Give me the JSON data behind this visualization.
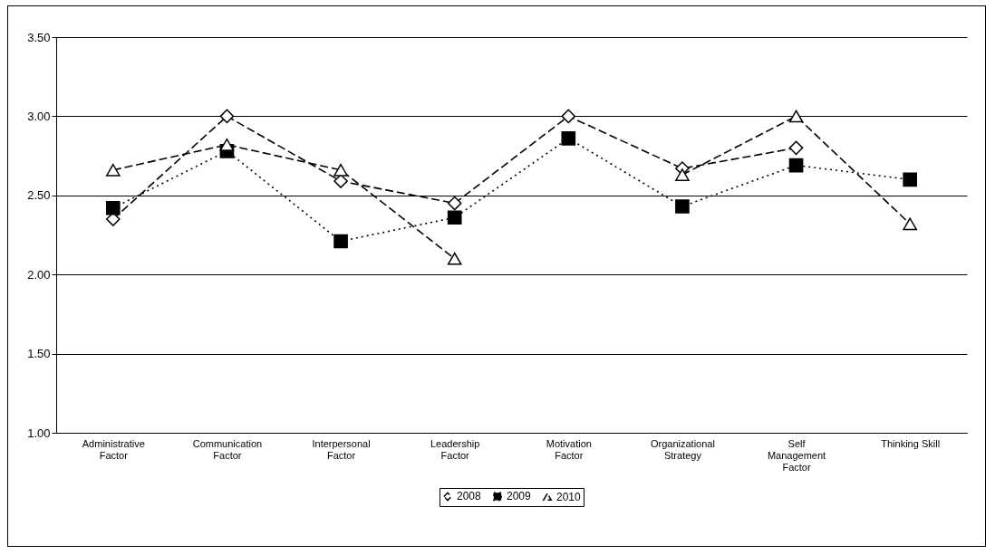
{
  "chart_data": {
    "type": "line",
    "categories": [
      "Administrative\nFactor",
      "Communication\nFactor",
      "Interpersonal\nFactor",
      "Leadership\nFactor",
      "Motivation\nFactor",
      "Organizational\nStrategy",
      "Self\nManagement\nFactor",
      "Thinking Skill"
    ],
    "series": [
      {
        "name": "2008",
        "color": "#000000",
        "marker": "diamond",
        "line_style": "dashed",
        "values": [
          2.35,
          3.0,
          2.59,
          2.45,
          3.0,
          2.67,
          2.8,
          null
        ]
      },
      {
        "name": "2009",
        "color": "#000000",
        "marker": "square",
        "line_style": "dotted",
        "values": [
          2.42,
          2.78,
          2.21,
          2.36,
          2.86,
          2.43,
          2.69,
          2.6
        ]
      },
      {
        "name": "2010",
        "color": "#000000",
        "marker": "triangle",
        "line_style": "dashed",
        "values": [
          2.66,
          2.82,
          2.66,
          2.1,
          null,
          2.63,
          3.0,
          2.32
        ]
      }
    ],
    "ylim": [
      1.0,
      3.5
    ],
    "yticks": [
      {
        "value": 1.0,
        "label": "1.00"
      },
      {
        "value": 1.5,
        "label": "1.50"
      },
      {
        "value": 2.0,
        "label": "2.00"
      },
      {
        "value": 2.5,
        "label": "2.50"
      },
      {
        "value": 3.0,
        "label": "3.00"
      },
      {
        "value": 3.5,
        "label": "3.50"
      }
    ],
    "grid": "y",
    "legend": "bottom"
  }
}
